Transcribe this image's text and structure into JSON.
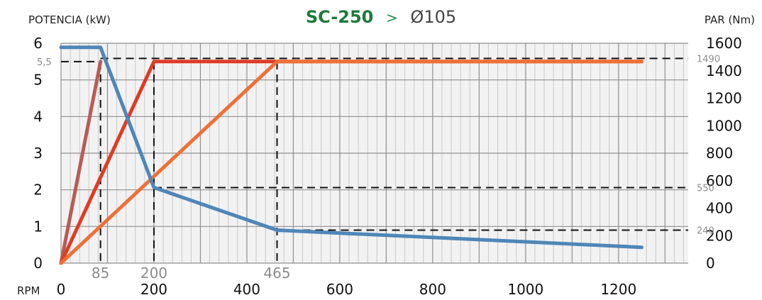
{
  "header": {
    "model": "SC-250",
    "separator": ">",
    "diameter": "Ø105"
  },
  "chart_data": {
    "type": "line",
    "title": "SC-250 > Ø105",
    "xlabel": "RPM",
    "ylabel_left": "POTENCIA (kW)",
    "ylabel_right": "PAR (Nm)",
    "xlim": [
      0,
      1350
    ],
    "ylim_left": [
      0,
      6
    ],
    "ylim_right": [
      0,
      1600
    ],
    "x_ticks": [
      0,
      200,
      400,
      600,
      800,
      1000,
      1200
    ],
    "x_tick_labels": [
      "0",
      "200",
      "400",
      "600",
      "800",
      "1000",
      "1200"
    ],
    "y_left_ticks": [
      0,
      1,
      2,
      3,
      4,
      5,
      6
    ],
    "y_left_tick_labels": [
      "0",
      "1",
      "2",
      "3",
      "4",
      "5",
      "6"
    ],
    "y_right_ticks": [
      0,
      200,
      400,
      600,
      800,
      1000,
      1200,
      1400,
      1600
    ],
    "y_right_tick_labels": [
      "0",
      "200",
      "400",
      "600",
      "800",
      "1000",
      "1200",
      "1400",
      "1600"
    ],
    "grid": true,
    "reference_x": [
      {
        "value": 85,
        "label": "85"
      },
      {
        "value": 200,
        "label": "200"
      },
      {
        "value": 465,
        "label": "465"
      }
    ],
    "reference_left": {
      "value": 5.5,
      "label": "5,5"
    },
    "reference_right": [
      {
        "value": 1490,
        "label": "1490"
      },
      {
        "value": 550,
        "label": "550"
      },
      {
        "value": 240,
        "label": "240"
      }
    ],
    "series": [
      {
        "axis": "left",
        "color": "#b85c55",
        "points": [
          [
            0,
            0
          ],
          [
            85,
            5.5
          ]
        ]
      },
      {
        "axis": "left",
        "color": "#e03b25",
        "points": [
          [
            0,
            0
          ],
          [
            200,
            5.5
          ],
          [
            1250,
            5.5
          ]
        ]
      },
      {
        "axis": "left",
        "color": "#ee7036",
        "points": [
          [
            0,
            0
          ],
          [
            465,
            5.5
          ],
          [
            1250,
            5.5
          ]
        ]
      },
      {
        "axis": "right",
        "color": "#4f86b8",
        "points": [
          [
            0,
            1570
          ],
          [
            85,
            1570
          ],
          [
            200,
            550
          ],
          [
            465,
            240
          ],
          [
            1250,
            115
          ]
        ]
      }
    ]
  }
}
